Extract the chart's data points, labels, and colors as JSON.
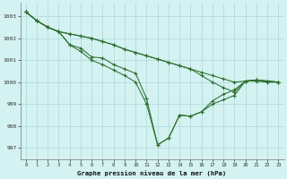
{
  "xlabel": "Graphe pression niveau de la mer (hPa)",
  "background_color": "#d4f2f2",
  "grid_color": "#aed8d8",
  "line_color": "#2d6e2d",
  "xlim": [
    -0.5,
    23.5
  ],
  "ylim": [
    996.5,
    1003.6
  ],
  "yticks": [
    997,
    998,
    999,
    1000,
    1001,
    1002,
    1003
  ],
  "xticks": [
    0,
    1,
    2,
    3,
    4,
    5,
    6,
    7,
    8,
    9,
    10,
    11,
    12,
    13,
    14,
    15,
    16,
    17,
    18,
    19,
    20,
    21,
    22,
    23
  ],
  "s1": [
    1003.2,
    1002.8,
    1002.5,
    1002.3,
    1001.7,
    1001.4,
    1001.0,
    1000.8,
    1000.55,
    1000.3,
    1000.0,
    999.0,
    997.15,
    997.45,
    998.5,
    998.45,
    998.65,
    999.0,
    999.2,
    999.4,
    1000.05,
    1000.05,
    1000.0,
    1000.0
  ],
  "s2": [
    1003.2,
    1002.8,
    1002.5,
    1002.3,
    1001.7,
    1001.55,
    1001.15,
    1001.1,
    1000.8,
    1000.6,
    1000.4,
    999.25,
    997.15,
    997.45,
    998.5,
    998.45,
    998.65,
    999.15,
    999.45,
    999.65,
    1000.05,
    1000.1,
    1000.05,
    1000.0
  ],
  "s3": [
    1003.2,
    1002.8,
    1002.5,
    1002.3,
    1002.2,
    1002.1,
    1002.0,
    1001.85,
    1001.7,
    1001.5,
    1001.35,
    1001.2,
    1001.05,
    1000.9,
    1000.75,
    1000.6,
    1000.45,
    1000.3,
    1000.15,
    1000.0,
    1000.05,
    1000.1,
    1000.05,
    1000.0
  ],
  "s4": [
    1003.2,
    1002.8,
    1002.5,
    1002.3,
    1002.2,
    1002.1,
    1002.0,
    1001.85,
    1001.7,
    1001.5,
    1001.35,
    1001.2,
    1001.05,
    1000.9,
    1000.75,
    1000.6,
    1000.3,
    1000.0,
    999.75,
    999.55,
    1000.05,
    1000.1,
    1000.05,
    1000.0
  ]
}
